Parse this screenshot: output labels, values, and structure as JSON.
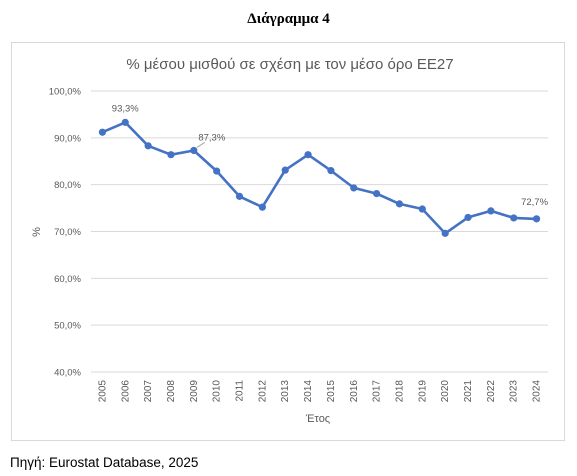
{
  "page": {
    "heading": "Διάγραμμα 4",
    "source": "Πηγή: Eurostat Database, 2025"
  },
  "colors": {
    "line": "#4472c4",
    "grid": "#d9d9d9",
    "text": "#595959"
  },
  "chart_data": {
    "type": "line",
    "title": "% μέσου μισθού σε σχέση με τον μέσο όρο ΕΕ27",
    "xlabel": "Έτος",
    "ylabel": "%",
    "ylim": [
      40,
      100
    ],
    "yticks": [
      "40,0%",
      "50,0%",
      "60,0%",
      "70,0%",
      "80,0%",
      "90,0%",
      "100,0%"
    ],
    "grid": true,
    "categories": [
      "2005",
      "2006",
      "2007",
      "2008",
      "2009",
      "2010",
      "2011",
      "2012",
      "2013",
      "2014",
      "2015",
      "2016",
      "2017",
      "2018",
      "2019",
      "2020",
      "2021",
      "2022",
      "2023",
      "2024"
    ],
    "series": [
      {
        "values": [
          91.2,
          93.3,
          88.3,
          86.4,
          87.3,
          82.9,
          77.5,
          75.2,
          83.1,
          86.4,
          83.0,
          79.3,
          78.1,
          75.9,
          74.8,
          69.6,
          73.0,
          74.4,
          72.9,
          72.7
        ]
      }
    ],
    "data_labels": [
      {
        "index": 1,
        "text": "93,3%"
      },
      {
        "index": 4,
        "text": "87,3%"
      },
      {
        "index": 19,
        "text": "72,7%"
      }
    ]
  }
}
